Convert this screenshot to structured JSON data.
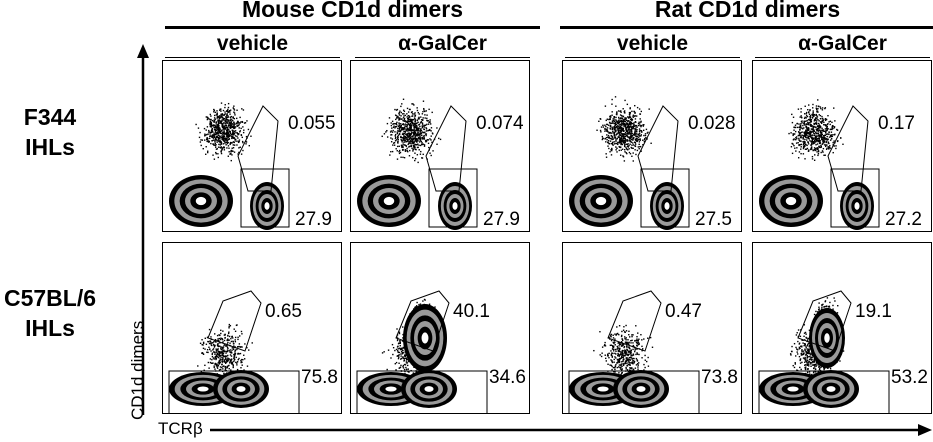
{
  "groups": [
    {
      "title": "Mouse CD1d dimers",
      "conditions": [
        "vehicle",
        "α-GalCer"
      ]
    },
    {
      "title": "Rat CD1d dimers",
      "conditions": [
        "vehicle",
        "α-GalCer"
      ]
    }
  ],
  "rows": [
    {
      "label_line1": "F344",
      "label_line2": "IHLs"
    },
    {
      "label_line1": "C57BL/6",
      "label_line2": "IHLs"
    }
  ],
  "axes": {
    "y_label": "CD1d dimers",
    "x_label": "TCRβ"
  },
  "panels": [
    {
      "row": 0,
      "col": 0,
      "gate_pct": "0.055",
      "tcell_pct": "27.9"
    },
    {
      "row": 0,
      "col": 1,
      "gate_pct": "0.074",
      "tcell_pct": "27.9"
    },
    {
      "row": 0,
      "col": 2,
      "gate_pct": "0.028",
      "tcell_pct": "27.5"
    },
    {
      "row": 0,
      "col": 3,
      "gate_pct": "0.17",
      "tcell_pct": "27.2"
    },
    {
      "row": 1,
      "col": 0,
      "gate_pct": "0.65",
      "tcell_pct": "75.8"
    },
    {
      "row": 1,
      "col": 1,
      "gate_pct": "40.1",
      "tcell_pct": "34.6"
    },
    {
      "row": 1,
      "col": 2,
      "gate_pct": "0.47",
      "tcell_pct": "73.8"
    },
    {
      "row": 1,
      "col": 3,
      "gate_pct": "19.1",
      "tcell_pct": "53.2"
    }
  ],
  "colors": {
    "ink": "#000000",
    "background": "#ffffff"
  }
}
